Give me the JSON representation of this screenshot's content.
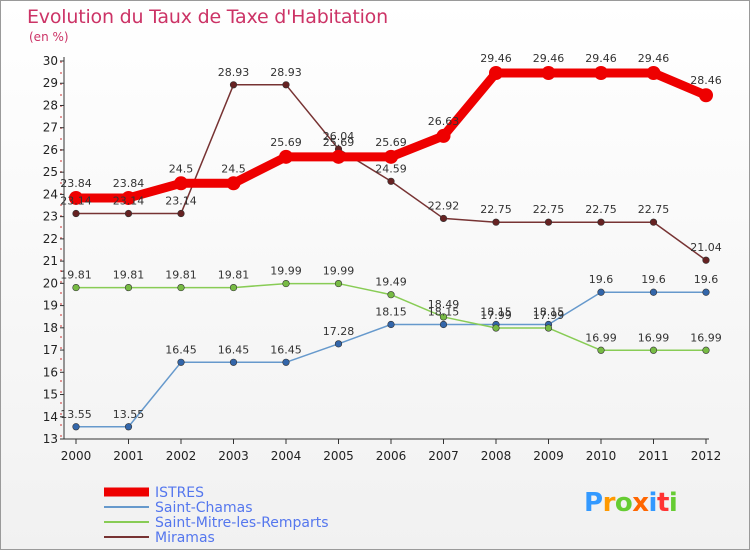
{
  "title": "Evolution du Taux de Taxe d'Habitation",
  "unit": "(en %)",
  "brand": {
    "text": "Proxiti",
    "colors": [
      "#3399ff",
      "#ff9900",
      "#66cc33",
      "#ff6600",
      "#3399ff",
      "#ff3333",
      "#66cc33"
    ]
  },
  "chart_data": {
    "type": "line",
    "x": [
      "2000",
      "2001",
      "2002",
      "2003",
      "2004",
      "2005",
      "2006",
      "2007",
      "2008",
      "2009",
      "2010",
      "2011",
      "2012"
    ],
    "ylim": [
      13,
      30
    ],
    "yticks": [
      13,
      14,
      15,
      16,
      17,
      18,
      19,
      20,
      21,
      22,
      23,
      24,
      25,
      26,
      27,
      28,
      29,
      30
    ],
    "grid": false,
    "legend_position": "bottom-left",
    "series": [
      {
        "name": "ISTRES",
        "color": "#ee0000",
        "values": [
          23.84,
          23.84,
          24.5,
          24.5,
          25.69,
          25.69,
          25.69,
          26.63,
          29.46,
          29.46,
          29.46,
          29.46,
          28.46
        ],
        "labels": [
          "23.84",
          "23.84",
          "24.5",
          "24.5",
          "25.69",
          "25.69",
          "25.69",
          "26.63",
          "29.46",
          "29.46",
          "29.46",
          "29.46",
          "28.46"
        ]
      },
      {
        "name": "Saint-Chamas",
        "color": "#6699cc",
        "values": [
          13.55,
          13.55,
          16.45,
          16.45,
          16.45,
          17.28,
          18.15,
          18.15,
          18.15,
          18.15,
          19.6,
          19.6,
          19.6
        ],
        "labels": [
          "13.55",
          "13.55",
          "16.45",
          "16.45",
          "16.45",
          "17.28",
          "18.15",
          "18.15",
          "18.15",
          "18.15",
          "19.6",
          "19.6",
          "19.6"
        ]
      },
      {
        "name": "Saint-Mitre-les-Remparts",
        "color": "#88cc55",
        "values": [
          19.81,
          19.81,
          19.81,
          19.81,
          19.99,
          19.99,
          19.49,
          18.49,
          17.99,
          17.99,
          16.99,
          16.99,
          16.99
        ],
        "labels": [
          "19.81",
          "19.81",
          "19.81",
          "19.81",
          "19.99",
          "19.99",
          "19.49",
          "18.49",
          "17.99",
          "17.99",
          "16.99",
          "16.99",
          "16.99"
        ]
      },
      {
        "name": "Miramas",
        "color": "#773333",
        "values": [
          23.14,
          23.14,
          23.14,
          28.93,
          28.93,
          26.04,
          24.59,
          22.92,
          22.75,
          22.75,
          22.75,
          22.75,
          21.04
        ],
        "labels": [
          "23.14",
          "23.14",
          "23.14",
          "28.93",
          "28.93",
          "26.04",
          "24.59",
          "22.92",
          "22.75",
          "22.75",
          "22.75",
          "22.75",
          "21.04"
        ]
      }
    ]
  }
}
